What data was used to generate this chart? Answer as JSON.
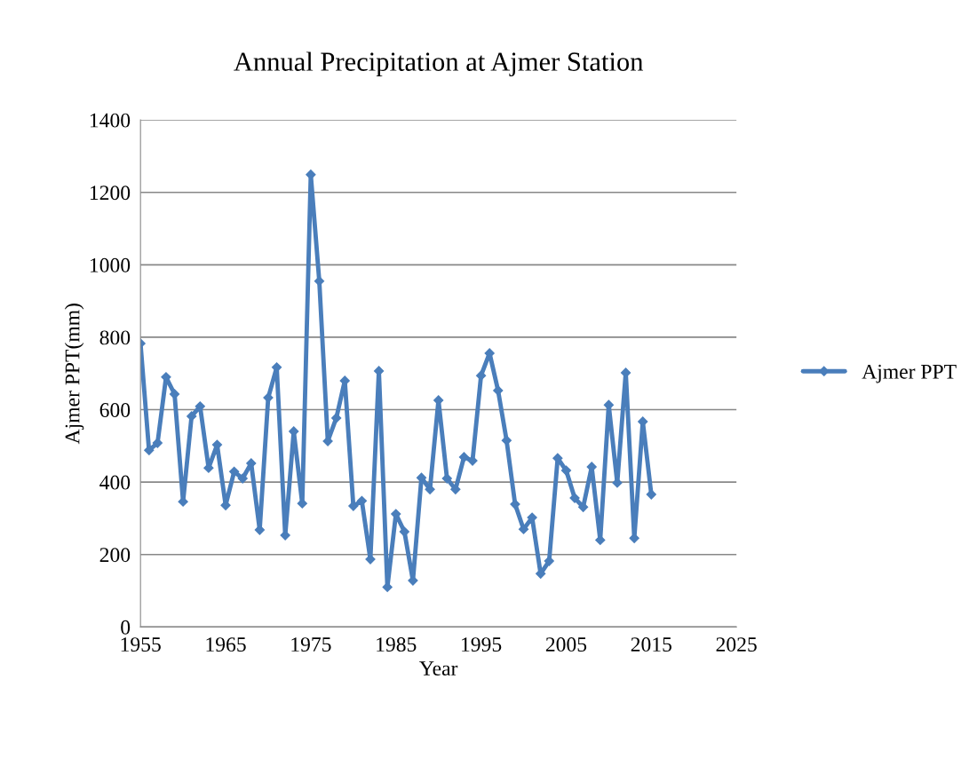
{
  "chart_data": {
    "type": "line",
    "title": "Annual Precipitation at Ajmer Station",
    "xlabel": "Year",
    "ylabel": "Ajmer PPT(mm)",
    "x": [
      1955,
      1956,
      1957,
      1958,
      1959,
      1960,
      1961,
      1962,
      1963,
      1964,
      1965,
      1966,
      1967,
      1968,
      1969,
      1970,
      1971,
      1972,
      1973,
      1974,
      1975,
      1976,
      1977,
      1978,
      1979,
      1980,
      1981,
      1982,
      1983,
      1984,
      1985,
      1986,
      1987,
      1988,
      1989,
      1990,
      1991,
      1992,
      1993,
      1994,
      1995,
      1996,
      1997,
      1998,
      1999,
      2000,
      2001,
      2002,
      2003,
      2004,
      2005,
      2006,
      2007,
      2008,
      2009,
      2010,
      2011,
      2012,
      2013,
      2014,
      2015
    ],
    "series": [
      {
        "name": "Ajmer PPT",
        "color": "#4a7ebb",
        "values": [
          783,
          488,
          508,
          690,
          643,
          346,
          582,
          609,
          439,
          503,
          336,
          429,
          410,
          452,
          268,
          633,
          717,
          253,
          540,
          341,
          1249,
          955,
          513,
          577,
          680,
          334,
          348,
          187,
          707,
          110,
          312,
          263,
          128,
          412,
          380,
          626,
          410,
          380,
          469,
          459,
          694,
          756,
          653,
          515,
          339,
          270,
          302,
          147,
          182,
          466,
          432,
          356,
          331,
          442,
          240,
          613,
          398,
          702,
          245,
          567,
          366
        ]
      }
    ],
    "xlim": [
      1955,
      2025
    ],
    "xticks": [
      1955,
      1965,
      1975,
      1985,
      1995,
      2005,
      2015,
      2025
    ],
    "ylim": [
      0,
      1400
    ],
    "yticks": [
      0,
      200,
      400,
      600,
      800,
      1000,
      1200,
      1400
    ],
    "grid": "y",
    "legend": "right",
    "marker": "diamond",
    "line_style": "solid"
  }
}
